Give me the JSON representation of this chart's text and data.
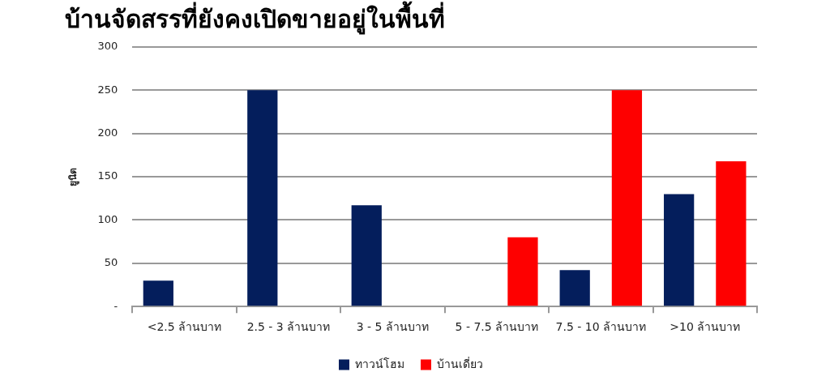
{
  "chart_data": {
    "type": "bar",
    "title": "บ้านจัดสรรที่ยังคงเปิดขายอยู่ในพื้นที่",
    "ylabel": "ยูนิต",
    "categories": [
      "<2.5 ล้านบาท",
      "2.5 - 3 ล้านบาท",
      "3 - 5 ล้านบาท",
      "5 - 7.5 ล้านบาท",
      "7.5 - 10 ล้านบาท",
      ">10 ล้านบาท"
    ],
    "series": [
      {
        "name": "ทาวน์โฮม",
        "color": "#041e5c",
        "values": [
          30,
          250,
          117,
          null,
          42,
          130
        ]
      },
      {
        "name": "บ้านเดี่ยว",
        "color": "#fe0000",
        "values": [
          null,
          null,
          null,
          80,
          250,
          168
        ]
      }
    ],
    "ylim": [
      0,
      300
    ],
    "yticks": [
      {
        "value": 0,
        "label": "-"
      },
      50,
      100,
      150,
      200,
      250,
      300
    ],
    "grid": "y",
    "legend": "bottom"
  }
}
